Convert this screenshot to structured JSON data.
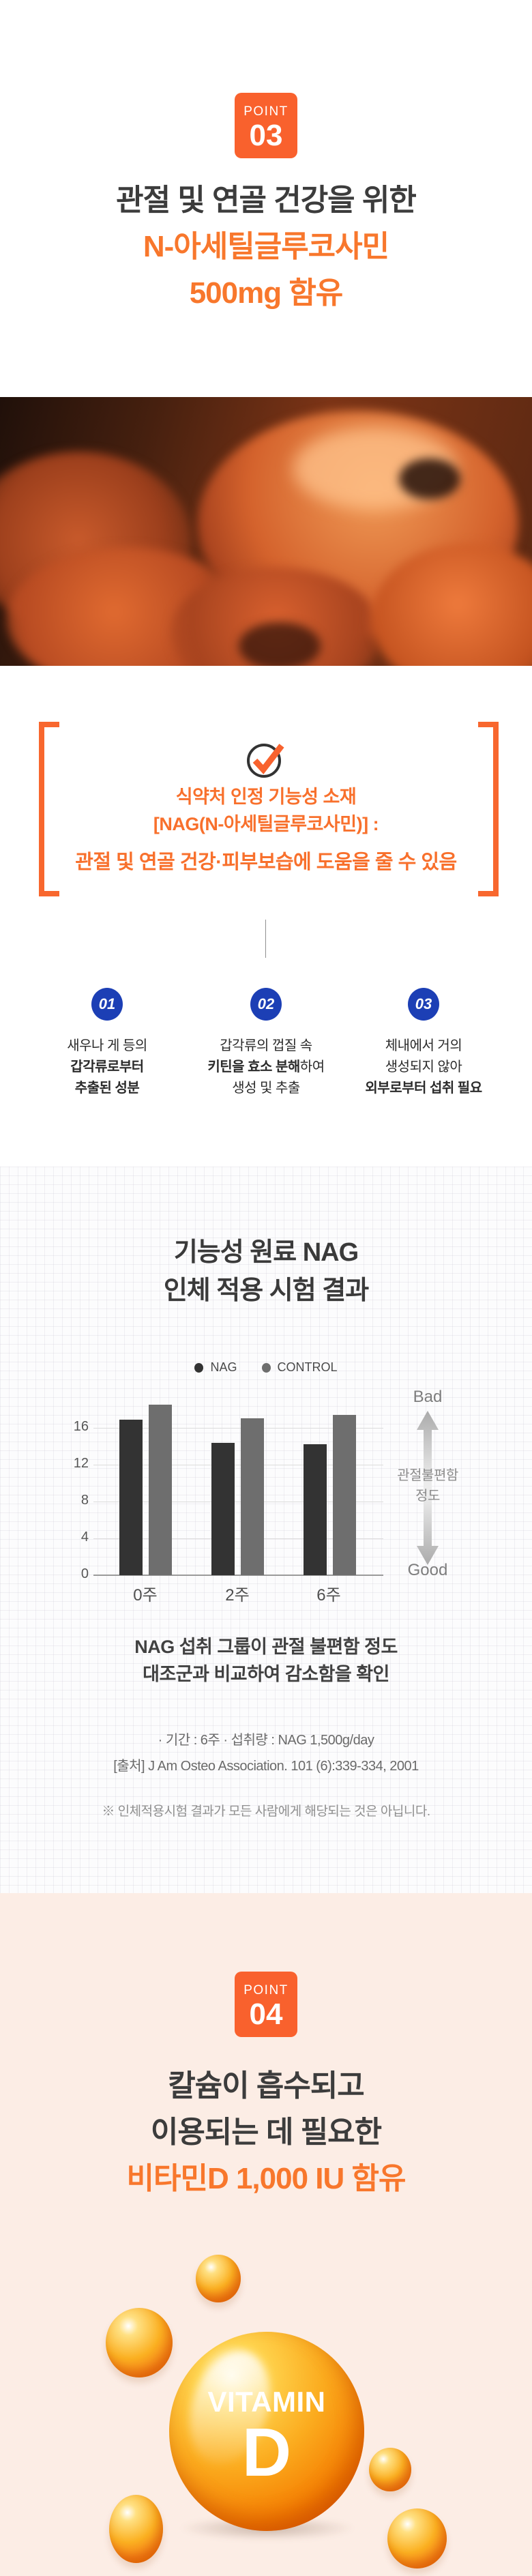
{
  "colors": {
    "accent_orange": "#F8702C",
    "badge_orange": "#F9612D",
    "step_blue": "#1C3FB5",
    "peach_background": "#FCEDE5",
    "dark_text": "#3C3C3C",
    "bar_nag": "#333333",
    "bar_control": "#6E6E6E"
  },
  "point3": {
    "badge_label": "POINT",
    "badge_number": "03",
    "title_line1": "관절 및 연골 건강을 위한",
    "title_line2": "N-아세틸글루코사민",
    "title_line3": "500mg 함유"
  },
  "highlight_box": {
    "line1": "식약처 인정 기능성 소재",
    "line2": "[NAG(N-아세틸글루코사민)] :",
    "line3": "관절 및 연골 건강·피부보습에 도움을 줄 수 있음"
  },
  "steps": {
    "items": [
      {
        "number": "01",
        "lines": [
          {
            "b": "",
            "n": "새우나 게 등의"
          },
          {
            "b": "갑각류로부터",
            "n": ""
          },
          {
            "b": "추출된 성분",
            "n": ""
          }
        ]
      },
      {
        "number": "02",
        "lines": [
          {
            "b": "",
            "n": "갑각류의 껍질 속"
          },
          {
            "b": "키틴을 효소 분해",
            "n": "하여"
          },
          {
            "b": "",
            "n": "생성 및 추출"
          }
        ]
      },
      {
        "number": "03",
        "lines": [
          {
            "b": "",
            "n": "체내에서 거의"
          },
          {
            "b": "",
            "n": "생성되지 않아"
          },
          {
            "b": "외부로부터 섭취 필요",
            "n": ""
          }
        ]
      }
    ]
  },
  "study": {
    "title_line1": "기능성 원료 NAG",
    "title_line2": "인체 적용 시험 결과",
    "side": {
      "bad": "Bad",
      "good": "Good",
      "label_line1": "관절불편함",
      "label_line2": "정도"
    },
    "caption_line1": "NAG 섭취 그룹이 관절 불편함 정도",
    "caption_line2": "대조군과 비교하여 감소함을 확인",
    "info_line1": "· 기간 : 6주  · 섭취량 : NAG 1,500g/day",
    "info_line2": "[출처] J Am Osteo Association. 101 (6):339-334, 2001",
    "disclaimer": "※ 인체적용시험 결과가 모든 사람에게 해당되는 것은 아닙니다."
  },
  "chart_data": {
    "type": "bar",
    "title": "기능성 원료 NAG 인체 적용 시험 결과",
    "categories": [
      "0주",
      "2주",
      "6주"
    ],
    "series": [
      {
        "name": "NAG",
        "color": "#333333",
        "values": [
          16.9,
          14.4,
          14.2
        ]
      },
      {
        "name": "CONTROL",
        "color": "#6E6E6E",
        "values": [
          18.5,
          17.0,
          17.4
        ]
      }
    ],
    "yticks": [
      0,
      4,
      8,
      12,
      16
    ],
    "ylim": [
      0,
      19.2
    ],
    "ylabel": "관절불편함 정도",
    "y_top_meaning": "Bad",
    "y_bottom_meaning": "Good",
    "legend_position": "top",
    "grid": true
  },
  "point4": {
    "badge_label": "POINT",
    "badge_number": "04",
    "title_line1": "칼슘이 흡수되고",
    "title_line2": "이용되는 데 필요한",
    "title_line3": "비타민D 1,000 IU 함유"
  },
  "vitamin": {
    "word": "VITAMIN",
    "letter": "D"
  }
}
